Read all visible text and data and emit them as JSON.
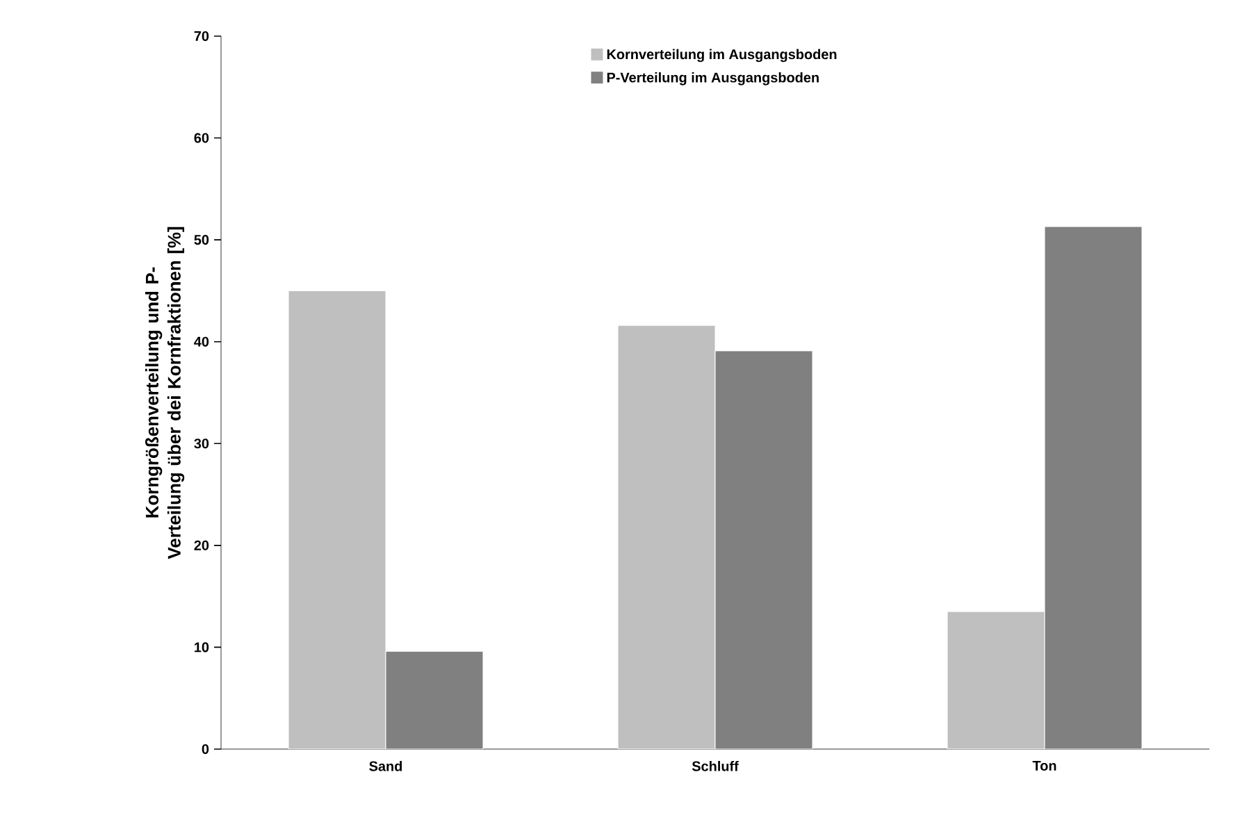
{
  "chart_data": {
    "type": "bar",
    "ylabel": "Korngrößenverteilung und P-Verteilung über dei Kornfraktionen [%]",
    "categories": [
      "Sand",
      "Schluff",
      "Ton"
    ],
    "series": [
      {
        "name": "Kornverteilung im Ausgangsboden",
        "color": "#bfbfbf",
        "values": [
          45.0,
          41.6,
          13.5
        ]
      },
      {
        "name": "P-Verteilung im Ausgangsboden",
        "color": "#808080",
        "values": [
          9.6,
          39.1,
          51.3
        ]
      }
    ],
    "ylim": [
      0,
      70
    ],
    "yticks": [
      0,
      10,
      20,
      30,
      40,
      50,
      60,
      70
    ],
    "grid": false,
    "legend": "top"
  }
}
